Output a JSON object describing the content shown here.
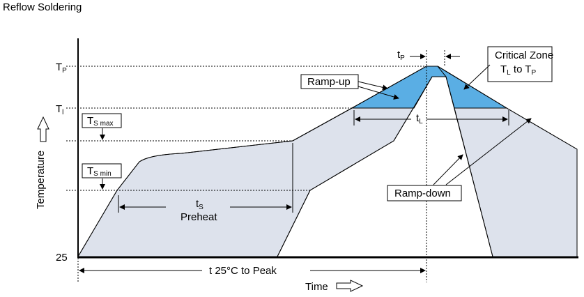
{
  "title": "Reflow Soldering",
  "y_axis": {
    "label": "Temperature",
    "labels": {
      "tp_main": "T",
      "tp_sub": "P",
      "tl_main": "T",
      "tl_sub": "l",
      "t25": "25"
    }
  },
  "x_axis": {
    "label": "Time",
    "span_label": "t 25°C to Peak"
  },
  "annotations": {
    "tp_width": {
      "main": "t",
      "sub": "P"
    },
    "tl_width": {
      "main": "t",
      "sub": "L"
    },
    "ts_width": {
      "main": "t",
      "sub": "S",
      "caption": "Preheat"
    },
    "ts_max": {
      "main": "T",
      "sub": "S max"
    },
    "ts_min": {
      "main": "T",
      "sub": "S min"
    },
    "ramp_up": "Ramp-up",
    "ramp_down": "Ramp-down",
    "critical_zone": {
      "line1": "Critical Zone",
      "line2_main1": "T",
      "line2_sub1": "L",
      "line2_mid": " to T",
      "line2_sub2": "P"
    }
  },
  "colors": {
    "envelope_fill": "#dde2ec",
    "critical_zone_fill": "#5aaee4",
    "axis": "#000000"
  }
}
